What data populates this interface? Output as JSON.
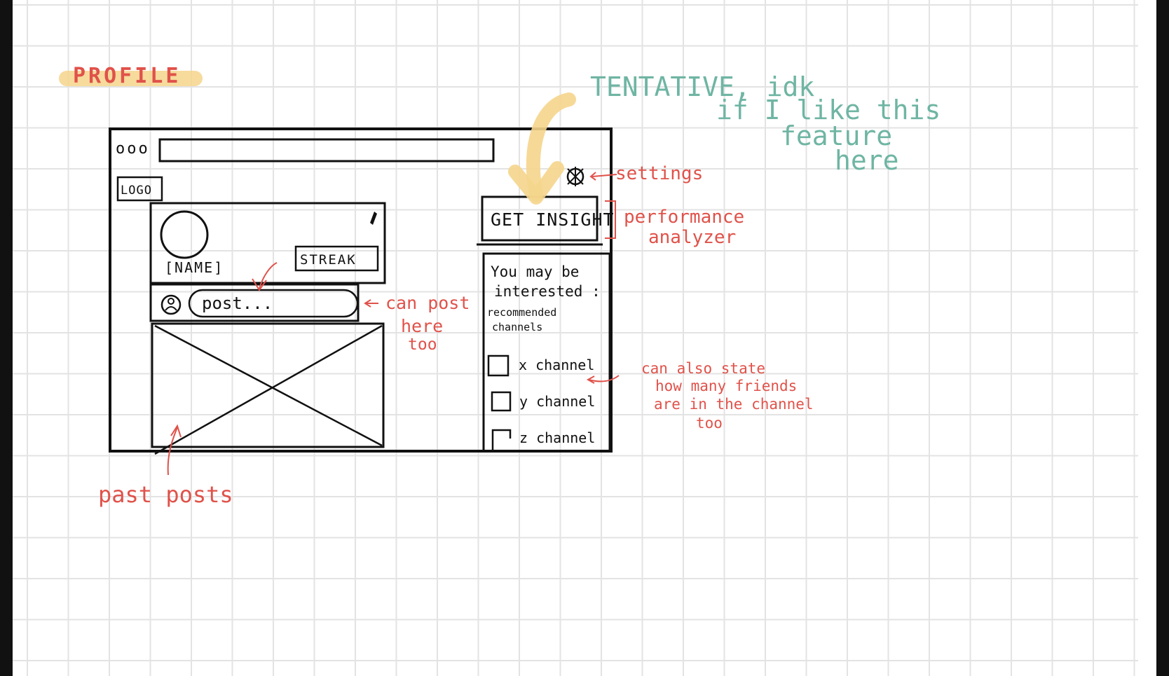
{
  "page": {
    "title": "PROFILE"
  },
  "wireframe": {
    "window_dots": "ooo",
    "logo": "LOGO",
    "profile_name": "[NAME]",
    "streak_button": "STREAK",
    "post_placeholder": "post...",
    "insights_button": "GET INSIGHT",
    "recommend_heading_line1": "You may be",
    "recommend_heading_line2": "interested :",
    "recommend_sub_line1": "recommended",
    "recommend_sub_line2": "channels",
    "channels": [
      "x channel",
      "y channel",
      "z channel"
    ]
  },
  "annotations": {
    "settings": "settings",
    "performance_line1": "performance",
    "performance_line2": "analyzer",
    "tentative_line1": "TENTATIVE, idk",
    "tentative_line2": "if I like this",
    "tentative_line3": "feature",
    "tentative_line4": "here",
    "can_post_line1": "can post",
    "can_post_line2": "here",
    "can_post_line3": "too",
    "friends_line1": "can also state",
    "friends_line2": "how many friends",
    "friends_line3": "are in the channel",
    "friends_line4": "too",
    "past_posts": "past posts"
  },
  "colors": {
    "ink": "#111111",
    "annotation_red": "#e0524a",
    "annotation_teal": "#6fb5a3",
    "highlight_yellow": "#f5d58c",
    "grid_line": "#e3e3e3"
  }
}
